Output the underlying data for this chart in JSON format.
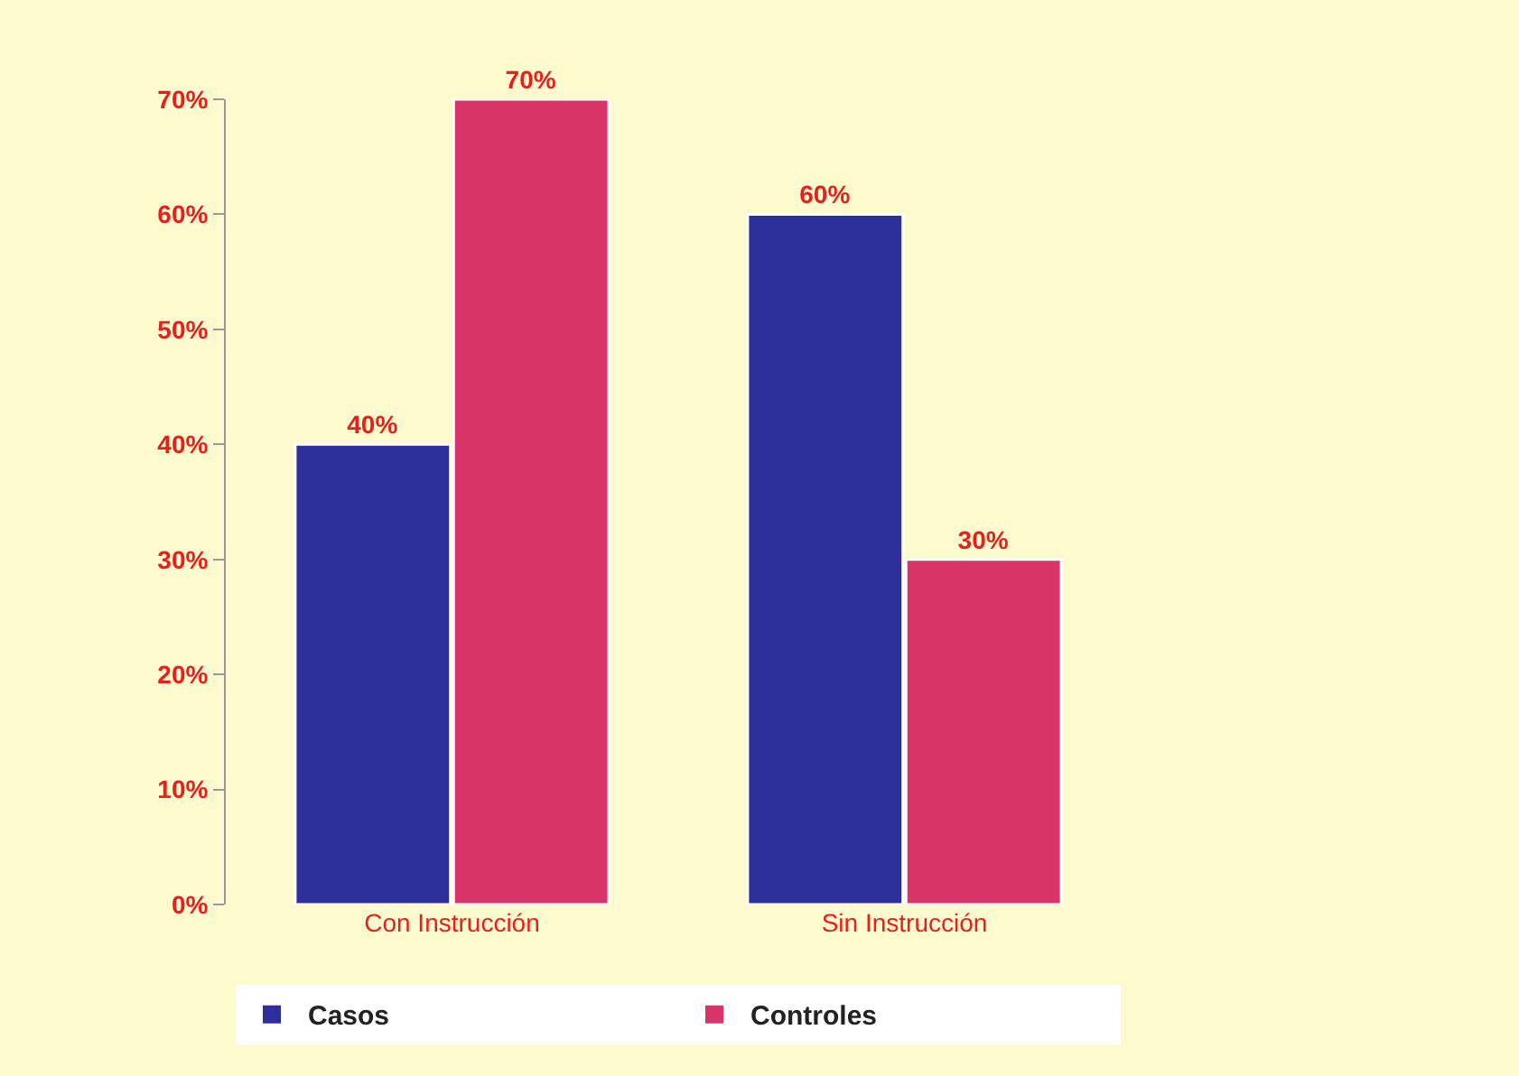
{
  "chart_data": {
    "type": "bar",
    "categories": [
      "Con Instrucción",
      "Sin Instrucción"
    ],
    "series": [
      {
        "name": "Casos",
        "color": "#2f2f9c",
        "values": [
          40,
          60
        ]
      },
      {
        "name": "Controles",
        "color": "#d8346a",
        "values": [
          70,
          30
        ]
      }
    ],
    "ylim": [
      0,
      70
    ],
    "yticks": [
      {
        "value": 0,
        "label": "0%"
      },
      {
        "value": 10,
        "label": "10%"
      },
      {
        "value": 20,
        "label": "20%"
      },
      {
        "value": 30,
        "label": "30%"
      },
      {
        "value": 40,
        "label": "40%"
      },
      {
        "value": 50,
        "label": "50%"
      },
      {
        "value": 60,
        "label": "60%"
      },
      {
        "value": 70,
        "label": "70%"
      }
    ],
    "value_labels": [
      [
        "40%",
        "60%"
      ],
      [
        "70%",
        "30%"
      ]
    ],
    "grid": false,
    "legend": "bottom"
  }
}
